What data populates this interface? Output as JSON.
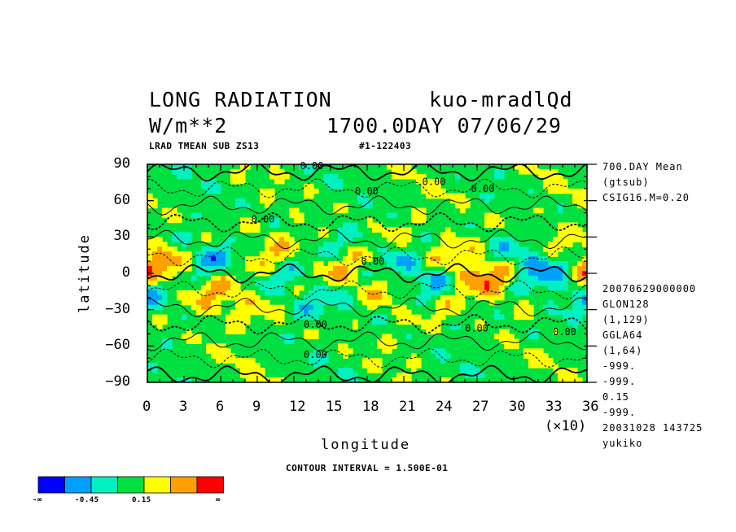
{
  "header": {
    "title_left": "LONG RADIATION",
    "title_right": "kuo-mradlQd",
    "units": "W/m**2",
    "time": "1700.0DAY 07/06/29",
    "sub_left": "LRAD TMEAN SUB ZS13",
    "sub_right": "#1-122403"
  },
  "side_info_top": [
    "700.DAY Mean",
    "(gtsub)",
    "CSIG16.M=0.20"
  ],
  "side_info_bottom": [
    "20070629000000",
    "GLON128",
    "(1,129)",
    "GGLA64",
    "(1,64)",
    "-999.",
    "-999.",
    "0.15",
    "-999.",
    "20031028 143725",
    "yukiko"
  ],
  "footer": {
    "contour_interval": "CONTOUR INTERVAL = 1.500E-01",
    "x_multiplier": "(×10)"
  },
  "legend": {
    "colors": [
      "#0000ff",
      "#00a0ff",
      "#00f0c0",
      "#00e040",
      "#ffff00",
      "#ffa000",
      "#ff0000"
    ],
    "labels": [
      "-∞",
      "-0.45",
      "0.15",
      "∞"
    ]
  },
  "chart_data": {
    "type": "heatmap",
    "xlabel": "longitude",
    "ylabel": "latitude",
    "xlim": [
      0,
      36
    ],
    "ylim": [
      -90,
      90
    ],
    "x_ticks": [
      0,
      3,
      6,
      9,
      12,
      15,
      18,
      21,
      24,
      27,
      30,
      33,
      36
    ],
    "y_ticks": [
      90,
      60,
      30,
      0,
      -30,
      -60,
      -90
    ],
    "contour_labels": [
      {
        "text": "0.00",
        "x": 12.5,
        "y": 86
      },
      {
        "text": "0.00",
        "x": 17.0,
        "y": 65
      },
      {
        "text": "0.00",
        "x": 22.5,
        "y": 73
      },
      {
        "text": "0.00",
        "x": 26.5,
        "y": 67
      },
      {
        "text": "0.00",
        "x": 8.5,
        "y": 42
      },
      {
        "text": "0.00",
        "x": 17.5,
        "y": 7
      },
      {
        "text": "0.00",
        "x": 12.8,
        "y": -45
      },
      {
        "text": "0.00",
        "x": 26.0,
        "y": -48
      },
      {
        "text": "0.00",
        "x": 33.2,
        "y": -51
      },
      {
        "text": "0.00",
        "x": 12.8,
        "y": -70
      }
    ]
  }
}
